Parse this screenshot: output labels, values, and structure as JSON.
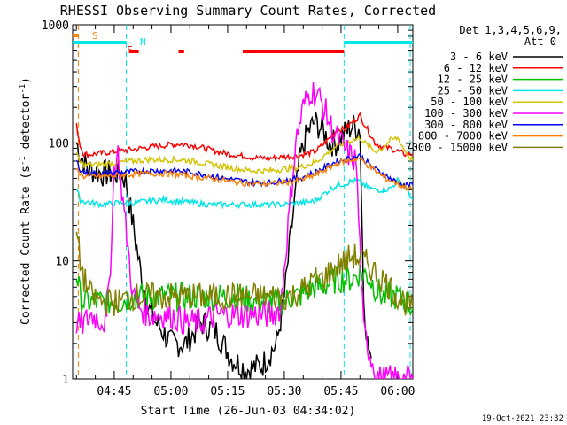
{
  "chart_data": {
    "type": "line",
    "title": "RHESSI Observing Summary Count Rates, Corrected",
    "xlabel": "Start Time (26-Jun-03 04:34:02)",
    "ylabel": "Corrected Count Rate (s⁻¹ detector⁻¹)",
    "ylabel_parts": {
      "main": "Corrected Count Rate (s",
      "sup1": "-1",
      "mid": " detector",
      "sup2": "-1",
      "end": ")"
    },
    "x_units": "minutes since 04:34:02",
    "xlim": [
      0,
      90
    ],
    "ylim": [
      1,
      1000
    ],
    "yscale": "log",
    "x_ticks": [
      {
        "label": "04:45",
        "x": 11
      },
      {
        "label": "05:00",
        "x": 26
      },
      {
        "label": "05:15",
        "x": 41
      },
      {
        "label": "05:30",
        "x": 56
      },
      {
        "label": "05:45",
        "x": 71
      },
      {
        "label": "06:00",
        "x": 86
      }
    ],
    "y_ticks": [
      {
        "label": "1",
        "y": 1
      },
      {
        "label": "10",
        "y": 10
      },
      {
        "label": "100",
        "y": 100
      },
      {
        "label": "1000",
        "y": 1000
      }
    ],
    "legend": {
      "position": "right",
      "header": [
        "Det 1,3,4,5,6,9,",
        "Att 0"
      ]
    },
    "series": [
      {
        "name": "3 - 6 keV",
        "color": "#000000",
        "x": [
          1,
          2,
          4,
          8,
          12,
          14,
          16,
          18,
          20,
          22,
          24,
          26,
          30,
          34,
          38,
          42,
          46,
          50,
          54,
          56,
          58,
          60,
          62,
          64,
          66,
          68,
          70,
          72,
          74,
          76,
          77,
          78,
          79
        ],
        "y": [
          100,
          80,
          60,
          55,
          55,
          50,
          20,
          8,
          4,
          3,
          2.5,
          2,
          2,
          3,
          2.5,
          1.5,
          1.2,
          1.3,
          2,
          5,
          20,
          70,
          120,
          150,
          130,
          100,
          100,
          120,
          140,
          130,
          5,
          2,
          1.5
        ]
      },
      {
        "name": "6 - 12 keV",
        "color": "#ff0000",
        "x": [
          1,
          2,
          3,
          5,
          8,
          12,
          16,
          20,
          24,
          28,
          32,
          36,
          40,
          44,
          48,
          52,
          56,
          60,
          64,
          66,
          68,
          70,
          72,
          74,
          76,
          78,
          80,
          82,
          84,
          86,
          88,
          90
        ],
        "y": [
          140,
          95,
          80,
          80,
          82,
          85,
          88,
          92,
          95,
          98,
          95,
          88,
          82,
          78,
          75,
          74,
          76,
          78,
          84,
          95,
          110,
          130,
          130,
          150,
          170,
          130,
          100,
          92,
          90,
          85,
          80,
          80
        ]
      },
      {
        "name": "12 - 25 keV",
        "color": "#00c000",
        "x": [
          1,
          2,
          3,
          5,
          8,
          12,
          16,
          20,
          24,
          28,
          32,
          36,
          40,
          44,
          48,
          52,
          56,
          58,
          60,
          62,
          64,
          66,
          68,
          70,
          72,
          74,
          76,
          78,
          80,
          82,
          84,
          86,
          88,
          90
        ],
        "y": [
          8,
          5,
          4.5,
          4.5,
          4.5,
          4.5,
          5,
          5,
          5,
          5,
          5,
          5,
          5,
          5,
          4.5,
          4.5,
          4.5,
          5,
          5,
          5.5,
          6,
          6,
          6.5,
          7,
          7,
          7,
          8,
          7.5,
          6,
          5,
          5,
          5,
          4.5,
          4
        ]
      },
      {
        "name": "25 - 50 keV",
        "color": "#00e5e5",
        "x": [
          1,
          2,
          3,
          5,
          8,
          12,
          16,
          20,
          24,
          28,
          32,
          36,
          40,
          44,
          48,
          52,
          56,
          60,
          64,
          66,
          68,
          70,
          72,
          74,
          76,
          78,
          80,
          82,
          84,
          86,
          88,
          90
        ],
        "y": [
          40,
          33,
          32,
          31,
          30,
          31,
          31,
          32,
          33,
          32,
          31,
          30,
          30,
          30,
          30,
          30,
          30,
          31,
          32,
          36,
          40,
          44,
          45,
          48,
          47,
          42,
          40,
          40,
          41,
          48,
          42,
          33
        ]
      },
      {
        "name": "50 - 100 keV",
        "color": "#d4c400",
        "x": [
          1,
          2,
          3,
          5,
          8,
          12,
          16,
          20,
          24,
          28,
          32,
          36,
          40,
          44,
          48,
          52,
          56,
          60,
          64,
          66,
          68,
          70,
          72,
          74,
          76,
          78,
          80,
          82,
          84,
          86,
          88,
          90
        ],
        "y": [
          80,
          68,
          65,
          65,
          66,
          68,
          70,
          72,
          72,
          72,
          70,
          66,
          63,
          60,
          58,
          58,
          60,
          62,
          68,
          75,
          85,
          95,
          100,
          105,
          110,
          95,
          85,
          90,
          105,
          110,
          85,
          70
        ]
      },
      {
        "name": "100 - 300 keV",
        "color": "#ff00ff",
        "x": [
          1,
          2,
          3,
          5,
          7,
          9,
          10,
          11,
          12,
          14,
          16,
          18,
          20,
          22,
          24,
          26,
          30,
          34,
          38,
          42,
          46,
          50,
          53,
          55,
          57,
          59,
          61,
          63,
          65,
          67,
          69,
          71,
          73,
          75,
          77,
          79,
          81,
          83,
          85,
          87,
          89,
          90
        ],
        "y": [
          3,
          2.8,
          3,
          3.5,
          3.2,
          3,
          10,
          60,
          80,
          20,
          5,
          4,
          3.5,
          3.5,
          3.5,
          3.5,
          3,
          3,
          3.5,
          3.5,
          3.5,
          3.5,
          3.5,
          4,
          20,
          100,
          200,
          280,
          250,
          180,
          120,
          100,
          80,
          70,
          2.5,
          1.5,
          1,
          1,
          1,
          1,
          1,
          1
        ]
      },
      {
        "name": "300 - 800 keV",
        "color": "#0000ff",
        "x": [
          1,
          2,
          3,
          5,
          8,
          12,
          16,
          20,
          24,
          28,
          32,
          36,
          40,
          44,
          48,
          52,
          56,
          60,
          64,
          66,
          68,
          70,
          72,
          74,
          76,
          78,
          80,
          82,
          84,
          86,
          88,
          90
        ],
        "y": [
          70,
          60,
          56,
          55,
          55,
          56,
          57,
          58,
          58,
          58,
          56,
          53,
          50,
          48,
          46,
          46,
          48,
          50,
          56,
          60,
          65,
          70,
          72,
          75,
          78,
          68,
          60,
          55,
          50,
          46,
          44,
          44
        ]
      },
      {
        "name": "800 - 7000 keV",
        "color": "#ff8000",
        "x": [
          1,
          2,
          3,
          5,
          8,
          12,
          16,
          20,
          24,
          28,
          32,
          36,
          40,
          44,
          48,
          52,
          56,
          60,
          64,
          66,
          68,
          70,
          72,
          74,
          76,
          78,
          80,
          82,
          84,
          86,
          88,
          90
        ],
        "y": [
          60,
          55,
          52,
          52,
          52,
          53,
          54,
          55,
          55,
          54,
          52,
          50,
          48,
          46,
          45,
          45,
          46,
          48,
          53,
          57,
          62,
          67,
          70,
          72,
          74,
          65,
          58,
          52,
          48,
          45,
          42,
          40
        ]
      },
      {
        "name": "7000 - 15000 keV",
        "color": "#808000",
        "x": [
          1,
          2,
          3,
          5,
          8,
          12,
          16,
          20,
          24,
          28,
          32,
          36,
          40,
          44,
          48,
          52,
          56,
          58,
          60,
          62,
          64,
          66,
          68,
          70,
          72,
          74,
          76,
          78,
          80,
          82,
          84,
          86,
          88,
          90
        ],
        "y": [
          18,
          10,
          7,
          5,
          4.5,
          4.5,
          5,
          5,
          5,
          5,
          5,
          5,
          5,
          5,
          5,
          5,
          5,
          5,
          5.5,
          6,
          7,
          7,
          8,
          9,
          10,
          11,
          10.5,
          9.5,
          8,
          7,
          6,
          5,
          4.5,
          4
        ]
      }
    ],
    "annotations": {
      "flags": [
        {
          "label": "S",
          "color": "#ff8000",
          "segments": [
            [
              -3,
              1.5
            ]
          ]
        },
        {
          "label": "N",
          "color": "#00e5e5",
          "segments": [
            [
              -3,
              14.2
            ],
            [
              71.8,
              90
            ]
          ]
        },
        {
          "label": "F",
          "color": "#ff0000",
          "segments": [
            [
              15,
              17.5
            ],
            [
              28,
              29.5
            ],
            [
              45,
              71.8
            ]
          ]
        }
      ],
      "vlines": [
        {
          "x": 1.5,
          "color": "#ff8000"
        },
        {
          "x": 14.2,
          "color": "#00e5e5"
        },
        {
          "x": 71.8,
          "color": "#00e5e5"
        },
        {
          "x": 89.3,
          "color": "#00e5e5"
        }
      ]
    },
    "footer": "19-Oct-2021 23:32"
  }
}
